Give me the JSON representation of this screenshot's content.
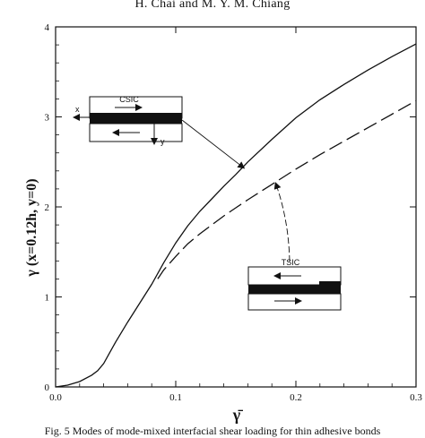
{
  "page": {
    "header": "H. Chai and M. Y. M. Chiang",
    "caption": "Fig. 5 Modes of mode-mixed interfacial shear loading for thin adhesive bonds"
  },
  "chart_data": {
    "type": "line",
    "xlabel": "γ̄",
    "ylabel": "γ (x=0.12h, y=0)",
    "xlim": [
      0,
      0.3
    ],
    "ylim": [
      0,
      4
    ],
    "xticks": [
      0.0,
      0.1,
      0.2,
      0.3
    ],
    "xtick_labels": [
      "0.0",
      "0.1",
      "0.2",
      "0.3"
    ],
    "yticks": [
      0,
      1,
      2,
      3,
      4
    ],
    "ytick_labels": [
      "0",
      "1",
      "2",
      "3",
      "4"
    ],
    "grid": false,
    "series": [
      {
        "name": "CSIC",
        "style": "solid",
        "color": "#111111",
        "x": [
          0,
          0.01,
          0.02,
          0.03,
          0.035,
          0.04,
          0.045,
          0.05,
          0.06,
          0.07,
          0.08,
          0.09,
          0.1,
          0.11,
          0.12,
          0.13,
          0.14,
          0.15,
          0.16,
          0.18,
          0.2,
          0.22,
          0.24,
          0.26,
          0.28,
          0.3
        ],
        "y": [
          0,
          0.02,
          0.06,
          0.13,
          0.18,
          0.26,
          0.38,
          0.5,
          0.72,
          0.93,
          1.14,
          1.38,
          1.6,
          1.79,
          1.95,
          2.09,
          2.23,
          2.36,
          2.5,
          2.75,
          2.99,
          3.19,
          3.36,
          3.52,
          3.67,
          3.81
        ]
      },
      {
        "name": "TSIC",
        "style": "dashed",
        "color": "#111111",
        "x": [
          0.085,
          0.09,
          0.1,
          0.11,
          0.12,
          0.13,
          0.14,
          0.15,
          0.16,
          0.18,
          0.2,
          0.22,
          0.24,
          0.26,
          0.28,
          0.3
        ],
        "y": [
          1.2,
          1.3,
          1.45,
          1.59,
          1.7,
          1.8,
          1.9,
          1.99,
          2.08,
          2.25,
          2.42,
          2.58,
          2.73,
          2.88,
          3.03,
          3.18
        ]
      }
    ],
    "annotations": [
      {
        "label": "CSIC",
        "points_to": {
          "x": 0.157,
          "y": 2.43
        }
      },
      {
        "label": "TSIC",
        "points_to": {
          "x": 0.183,
          "y": 2.27
        }
      }
    ],
    "inset_labels": {
      "x_axis": "x",
      "y_axis": "y"
    }
  }
}
